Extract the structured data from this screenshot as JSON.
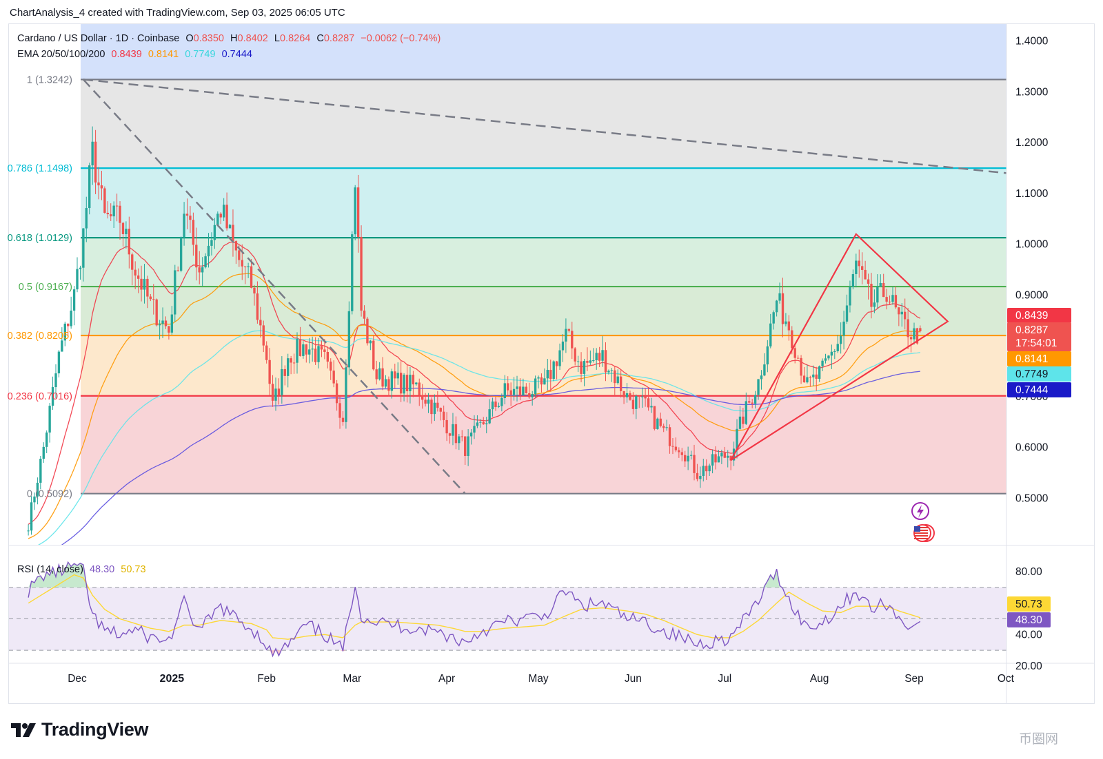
{
  "header": {
    "title": "ChartAnalysis_4 created with TradingView.com, Sep 03, 2025 06:05 UTC"
  },
  "legend": {
    "symbol": "Cardano / US Dollar · 1D · Coinbase",
    "open_label": "O",
    "open": "0.8350",
    "high_label": "H",
    "high": "0.8402",
    "low_label": "L",
    "low": "0.8264",
    "close_label": "C",
    "close": "0.8287",
    "change": "−0.0062 (−0.74%)",
    "ema_label": "EMA 20/50/100/200",
    "ema20": "0.8439",
    "ema50": "0.8141",
    "ema100": "0.7749",
    "ema200": "0.7444"
  },
  "rsi_legend": {
    "label": "RSI (14, close)",
    "value": "48.30",
    "ma": "50.73"
  },
  "footer": {
    "brand": "TradingView",
    "watermark": "币圈网"
  },
  "colors": {
    "up": "#26a69a",
    "down": "#ef5350",
    "ema20": "#f23645",
    "ema50": "#ff9800",
    "ema100": "#5ee4ea",
    "ema200": "#5b4fe0",
    "rsi": "#7e57c2",
    "rsi_ma": "#fdd835"
  },
  "chart_data": [
    {
      "type": "candlestick",
      "title": "Cardano / US Dollar · 1D · Coinbase",
      "ylim": [
        0.42,
        1.44
      ],
      "y_ticks": [
        "1.4000",
        "1.3000",
        "1.2000",
        "1.1000",
        "1.0000",
        "0.9000",
        "0.8000",
        "0.7000",
        "0.6000",
        "0.5000"
      ],
      "x_ticks": [
        "Dec",
        "2025",
        "Feb",
        "Mar",
        "Apr",
        "May",
        "Jun",
        "Jul",
        "Aug",
        "Sep",
        "Oct"
      ],
      "fib_levels": [
        {
          "label": "1 (1.3242)",
          "value": 1.3242
        },
        {
          "label": "0.786 (1.1498)",
          "value": 1.1498
        },
        {
          "label": "0.618 (1.0129)",
          "value": 1.0129
        },
        {
          "label": "0.5 (0.9167)",
          "value": 0.9167
        },
        {
          "label": "0.382 (0.8205)",
          "value": 0.8205
        },
        {
          "label": "0.236 (0.7016)",
          "value": 0.7016
        },
        {
          "label": "0 (0.5092)",
          "value": 0.5092
        }
      ],
      "close_series": {
        "dates": [
          "2024-11-15",
          "2024-11-20",
          "2024-11-25",
          "2024-11-30",
          "2024-12-03",
          "2024-12-06",
          "2024-12-10",
          "2024-12-15",
          "2024-12-20",
          "2024-12-25",
          "2024-12-31",
          "2025-01-05",
          "2025-01-10",
          "2025-01-17",
          "2025-01-22",
          "2025-01-27",
          "2025-02-01",
          "2025-02-03",
          "2025-02-08",
          "2025-02-14",
          "2025-02-20",
          "2025-02-26",
          "2025-03-02",
          "2025-03-04",
          "2025-03-09",
          "2025-03-15",
          "2025-03-22",
          "2025-03-29",
          "2025-04-03",
          "2025-04-07",
          "2025-04-12",
          "2025-04-20",
          "2025-04-27",
          "2025-05-03",
          "2025-05-10",
          "2025-05-15",
          "2025-05-22",
          "2025-05-30",
          "2025-06-05",
          "2025-06-11",
          "2025-06-17",
          "2025-06-22",
          "2025-06-27",
          "2025-07-03",
          "2025-07-07",
          "2025-07-12",
          "2025-07-18",
          "2025-07-22",
          "2025-07-28",
          "2025-08-02",
          "2025-08-08",
          "2025-08-13",
          "2025-08-18",
          "2025-08-23",
          "2025-08-27",
          "2025-09-01",
          "2025-09-03"
        ],
        "values": [
          0.45,
          0.6,
          0.78,
          0.9,
          1.02,
          1.18,
          1.05,
          1.05,
          0.95,
          0.88,
          0.83,
          1.07,
          0.95,
          1.07,
          0.98,
          0.92,
          0.78,
          0.68,
          0.78,
          0.8,
          0.77,
          0.66,
          1.13,
          0.87,
          0.74,
          0.73,
          0.72,
          0.67,
          0.63,
          0.6,
          0.64,
          0.71,
          0.71,
          0.72,
          0.82,
          0.76,
          0.78,
          0.7,
          0.68,
          0.63,
          0.6,
          0.55,
          0.57,
          0.59,
          0.66,
          0.73,
          0.89,
          0.84,
          0.72,
          0.75,
          0.82,
          0.96,
          0.88,
          0.91,
          0.85,
          0.82,
          0.8287
        ]
      },
      "ema_last": {
        "EMA 20": 0.8439,
        "EMA 50": 0.8141,
        "EMA 100": 0.7749,
        "EMA 200": 0.7444
      },
      "price_labels": [
        {
          "text": "0.8439",
          "value": 0.8439,
          "color": "#f23645"
        },
        {
          "text": "0.8287",
          "value": 0.8287,
          "color": "#ef5350"
        },
        {
          "text": "17:54:01",
          "value": 0.8287,
          "color": "#ef5350"
        },
        {
          "text": "0.8141",
          "value": 0.8141,
          "color": "#ff9800"
        },
        {
          "text": "0.7749",
          "value": 0.7749,
          "color": "#5ee4ea"
        },
        {
          "text": "0.7444",
          "value": 0.7444,
          "color": "#1a1ac8"
        }
      ],
      "grid": false
    },
    {
      "type": "line",
      "title": "RSI (14, close)",
      "ylim": [
        15,
        95
      ],
      "y_ticks": [
        "80.00",
        "40.00",
        "20.00"
      ],
      "levels": [
        70,
        50,
        30
      ],
      "series": [
        {
          "name": "RSI (14, close)",
          "values": [
            68,
            78,
            80,
            84,
            80,
            52,
            42,
            40,
            43,
            38,
            36,
            60,
            42,
            58,
            50,
            44,
            34,
            26,
            33,
            46,
            40,
            30,
            74,
            52,
            48,
            46,
            44,
            42,
            38,
            35,
            42,
            48,
            50,
            52,
            68,
            58,
            60,
            50,
            48,
            42,
            38,
            34,
            36,
            38,
            48,
            62,
            80,
            62,
            44,
            48,
            58,
            68,
            56,
            60,
            50,
            45,
            48.3
          ]
        },
        {
          "name": "RSI-based MA",
          "values": [
            60,
            66,
            72,
            78,
            76,
            65,
            56,
            50,
            47,
            44,
            42,
            46,
            46,
            49,
            48,
            47,
            43,
            38,
            37,
            39,
            40,
            38,
            46,
            48,
            48,
            48,
            47,
            46,
            44,
            42,
            42,
            44,
            45,
            46,
            52,
            56,
            57,
            55,
            53,
            49,
            44,
            40,
            38,
            38,
            42,
            49,
            60,
            67,
            60,
            55,
            54,
            58,
            58,
            58,
            55,
            52,
            50.73
          ]
        }
      ],
      "price_labels": [
        {
          "text": "50.73",
          "value": 50.73,
          "color": "#fdd835"
        },
        {
          "text": "48.30",
          "value": 48.3,
          "color": "#7e57c2"
        }
      ]
    }
  ]
}
